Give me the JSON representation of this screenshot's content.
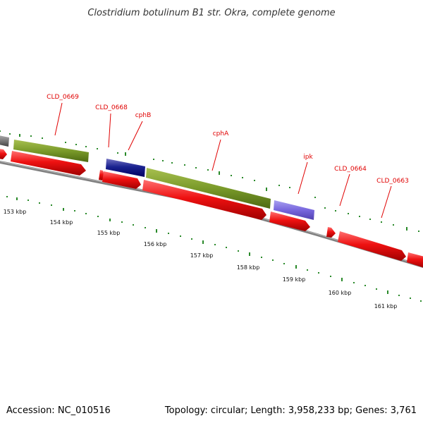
{
  "title": "Clostridium botulinum B1 str. Okra, complete genome",
  "footer": {
    "accession": "Accession: NC_010516",
    "summary": "Topology: circular; Length: 3,958,233 bp; Genes: 3,761"
  },
  "scale_labels": [
    "153 kbp",
    "154 kbp",
    "155 kbp",
    "156 kbp",
    "157 kbp",
    "158 kbp",
    "159 kbp",
    "160 kbp",
    "161 kbp"
  ],
  "gene_labels": [
    "CLD_0669",
    "CLD_0668",
    "cphB",
    "cphA",
    "ipk",
    "CLD_0664",
    "CLD_0663"
  ],
  "colors": {
    "cds": "#ee1111",
    "olive_feature": "#7a9a2a",
    "navy_feature": "#101a80",
    "violet_feature": "#7766dd",
    "gray_feature": "#777777",
    "backbone": "#888888",
    "tick": "#2a8a2a",
    "label": "#e00000"
  }
}
